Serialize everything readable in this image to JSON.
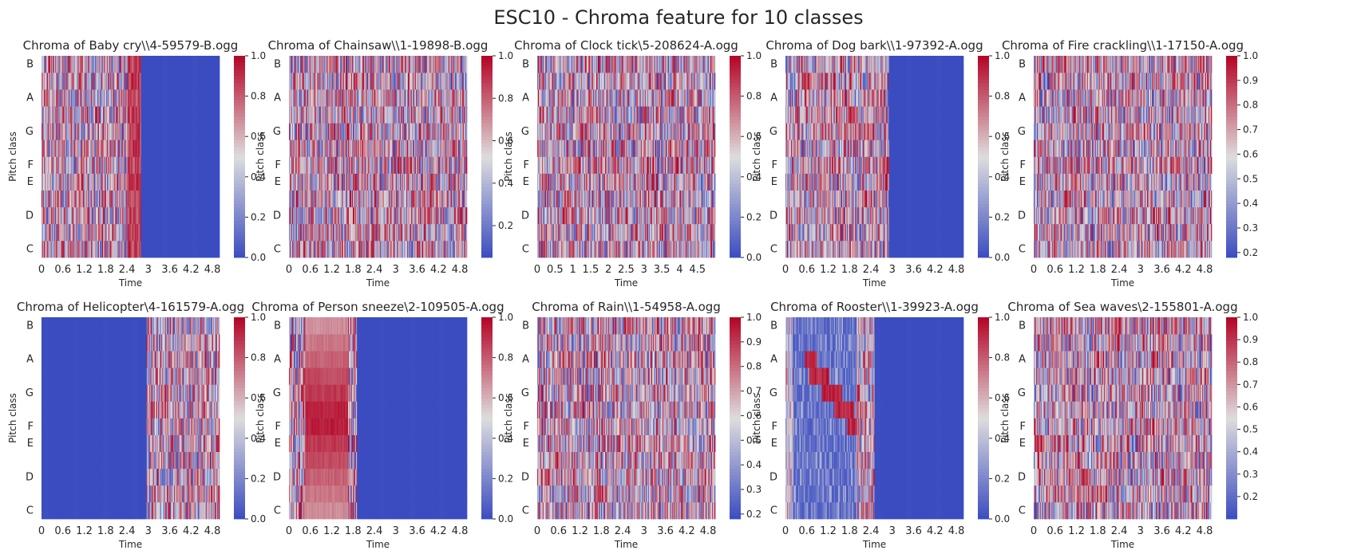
{
  "figure": {
    "suptitle": "ESC10 - Chroma feature for 10 classes"
  },
  "colormap": {
    "name": "coolwarm",
    "low": "#3b4cc0",
    "mid": "#dddddd",
    "high": "#b40426"
  },
  "chart_data": [
    {
      "type": "heatmap",
      "title": "Chroma of Baby cry\\\\4-59579-B.ogg",
      "xlabel": "Time",
      "ylabel": "Pitch class",
      "yticklabels": [
        "C",
        "D",
        "E",
        "F",
        "G",
        "A",
        "B"
      ],
      "xticklabels": [
        "0",
        "0.6",
        "1.2",
        "1.8",
        "2.4",
        "3",
        "3.6",
        "4.2",
        "4.8"
      ],
      "xticks": [
        0,
        0.6,
        1.2,
        1.8,
        2.4,
        3,
        3.6,
        4.2,
        4.8
      ],
      "xlim": [
        0,
        5.0
      ],
      "clim": [
        0.0,
        1.0
      ],
      "colorbar_ticks": [
        "0.0",
        "0.2",
        "0.4",
        "0.6",
        "0.8",
        "1.0"
      ],
      "colorbar_tick_values": [
        0.0,
        0.2,
        0.4,
        0.6,
        0.8,
        1.0
      ],
      "signal": [
        {
          "start": 0.0,
          "end": 2.4,
          "pattern": "noise"
        },
        {
          "start": 2.4,
          "end": 2.8,
          "pattern": "high"
        }
      ],
      "after_signal": 0.0
    },
    {
      "type": "heatmap",
      "title": "Chroma of Chainsaw\\\\1-19898-B.ogg",
      "xlabel": "Time",
      "ylabel": "Pitch class",
      "yticklabels": [
        "C",
        "D",
        "E",
        "F",
        "G",
        "A",
        "B"
      ],
      "xticklabels": [
        "0",
        "0.6",
        "1.2",
        "1.8",
        "2.4",
        "3",
        "3.6",
        "4.2",
        "4.8"
      ],
      "xticks": [
        0,
        0.6,
        1.2,
        1.8,
        2.4,
        3,
        3.6,
        4.2,
        4.8
      ],
      "xlim": [
        0,
        5.0
      ],
      "clim": [
        0.05,
        1.0
      ],
      "colorbar_ticks": [
        "0.2",
        "0.4",
        "0.6",
        "0.8",
        "1.0"
      ],
      "colorbar_tick_values": [
        0.2,
        0.4,
        0.6,
        0.8,
        1.0
      ],
      "signal": [
        {
          "start": 0.0,
          "end": 5.0,
          "pattern": "noise"
        }
      ],
      "after_signal": 0.0
    },
    {
      "type": "heatmap",
      "title": "Chroma of Clock tick\\5-208624-A.ogg",
      "xlabel": "Time",
      "ylabel": "Pitch class",
      "yticklabels": [
        "C",
        "D",
        "E",
        "F",
        "G",
        "A",
        "B"
      ],
      "xticklabels": [
        "0",
        "0.5",
        "1",
        "1.5",
        "2",
        "2.5",
        "3",
        "3.5",
        "4",
        "4.5"
      ],
      "xticks": [
        0,
        0.5,
        1,
        1.5,
        2,
        2.5,
        3,
        3.5,
        4,
        4.5
      ],
      "xlim": [
        0,
        5.0
      ],
      "clim": [
        0.0,
        1.0
      ],
      "colorbar_ticks": [
        "0.0",
        "0.2",
        "0.4",
        "0.6",
        "0.8",
        "1.0"
      ],
      "colorbar_tick_values": [
        0.0,
        0.2,
        0.4,
        0.6,
        0.8,
        1.0
      ],
      "signal": [
        {
          "start": 0.0,
          "end": 5.0,
          "pattern": "noise"
        }
      ],
      "after_signal": 0.0
    },
    {
      "type": "heatmap",
      "title": "Chroma of Dog bark\\\\1-97392-A.ogg",
      "xlabel": "Time",
      "ylabel": "Pitch class",
      "yticklabels": [
        "C",
        "D",
        "E",
        "F",
        "G",
        "A",
        "B"
      ],
      "xticklabels": [
        "0",
        "0.6",
        "1.2",
        "1.8",
        "2.4",
        "3",
        "3.6",
        "4.2",
        "4.8"
      ],
      "xticks": [
        0,
        0.6,
        1.2,
        1.8,
        2.4,
        3,
        3.6,
        4.2,
        4.8
      ],
      "xlim": [
        0,
        5.0
      ],
      "clim": [
        0.0,
        1.0
      ],
      "colorbar_ticks": [
        "0.0",
        "0.2",
        "0.4",
        "0.6",
        "0.8",
        "1.0"
      ],
      "colorbar_tick_values": [
        0.0,
        0.2,
        0.4,
        0.6,
        0.8,
        1.0
      ],
      "signal": [
        {
          "start": 0.0,
          "end": 2.9,
          "pattern": "noise"
        }
      ],
      "after_signal": 0.0
    },
    {
      "type": "heatmap",
      "title": "Chroma of Fire crackling\\\\1-17150-A.ogg",
      "xlabel": "Time",
      "ylabel": "Pitch class",
      "yticklabels": [
        "C",
        "D",
        "E",
        "F",
        "G",
        "A",
        "B"
      ],
      "xticklabels": [
        "0",
        "0.6",
        "1.2",
        "1.8",
        "2.4",
        "3",
        "3.6",
        "4.2",
        "4.8"
      ],
      "xticks": [
        0,
        0.6,
        1.2,
        1.8,
        2.4,
        3,
        3.6,
        4.2,
        4.8
      ],
      "xlim": [
        0,
        5.0
      ],
      "clim": [
        0.18,
        1.0
      ],
      "colorbar_ticks": [
        "0.2",
        "0.3",
        "0.4",
        "0.5",
        "0.6",
        "0.7",
        "0.8",
        "0.9",
        "1.0"
      ],
      "colorbar_tick_values": [
        0.2,
        0.3,
        0.4,
        0.5,
        0.6,
        0.7,
        0.8,
        0.9,
        1.0
      ],
      "signal": [
        {
          "start": 0.0,
          "end": 5.0,
          "pattern": "noise"
        }
      ],
      "after_signal": 0.0
    },
    {
      "type": "heatmap",
      "title": "Chroma of Helicopter\\4-161579-A.ogg",
      "xlabel": "Time",
      "ylabel": "Pitch class",
      "yticklabels": [
        "C",
        "D",
        "E",
        "F",
        "G",
        "A",
        "B"
      ],
      "xticklabels": [
        "0",
        "0.6",
        "1.2",
        "1.8",
        "2.4",
        "3",
        "3.6",
        "4.2",
        "4.8"
      ],
      "xticks": [
        0,
        0.6,
        1.2,
        1.8,
        2.4,
        3,
        3.6,
        4.2,
        4.8
      ],
      "xlim": [
        0,
        5.0
      ],
      "clim": [
        0.0,
        1.0
      ],
      "colorbar_ticks": [
        "0.0",
        "0.2",
        "0.4",
        "0.6",
        "0.8",
        "1.0"
      ],
      "colorbar_tick_values": [
        0.0,
        0.2,
        0.4,
        0.6,
        0.8,
        1.0
      ],
      "signal": [
        {
          "start": 2.95,
          "end": 5.0,
          "pattern": "noise"
        }
      ],
      "after_signal": 0.0
    },
    {
      "type": "heatmap",
      "title": "Chroma of Person sneeze\\2-109505-A.ogg",
      "xlabel": "Time",
      "ylabel": "Pitch class",
      "yticklabels": [
        "C",
        "D",
        "E",
        "F",
        "G",
        "A",
        "B"
      ],
      "xticklabels": [
        "0",
        "0.6",
        "1.2",
        "1.8",
        "2.4",
        "3",
        "3.6",
        "4.2",
        "4.8"
      ],
      "xticks": [
        0,
        0.6,
        1.2,
        1.8,
        2.4,
        3,
        3.6,
        4.2,
        4.8
      ],
      "xlim": [
        0,
        5.0
      ],
      "clim": [
        0.0,
        1.0
      ],
      "colorbar_ticks": [
        "0.0",
        "0.2",
        "0.4",
        "0.6",
        "0.8",
        "1.0"
      ],
      "colorbar_tick_values": [
        0.0,
        0.2,
        0.4,
        0.6,
        0.8,
        1.0
      ],
      "signal": [
        {
          "start": 0.0,
          "end": 0.45,
          "pattern": "noise"
        },
        {
          "start": 0.45,
          "end": 1.65,
          "pattern": "sneeze"
        },
        {
          "start": 1.65,
          "end": 1.9,
          "pattern": "noise"
        }
      ],
      "after_signal": 0.0
    },
    {
      "type": "heatmap",
      "title": "Chroma of Rain\\\\1-54958-A.ogg",
      "xlabel": "Time",
      "ylabel": "Pitch class",
      "yticklabels": [
        "C",
        "D",
        "E",
        "F",
        "G",
        "A",
        "B"
      ],
      "xticklabels": [
        "0",
        "0.6",
        "1.2",
        "1.8",
        "2.4",
        "3",
        "3.6",
        "4.2",
        "4.8"
      ],
      "xticks": [
        0,
        0.6,
        1.2,
        1.8,
        2.4,
        3,
        3.6,
        4.2,
        4.8
      ],
      "xlim": [
        0,
        5.0
      ],
      "clim": [
        0.18,
        1.0
      ],
      "colorbar_ticks": [
        "0.2",
        "0.3",
        "0.4",
        "0.5",
        "0.6",
        "0.7",
        "0.8",
        "0.9",
        "1.0"
      ],
      "colorbar_tick_values": [
        0.2,
        0.3,
        0.4,
        0.5,
        0.6,
        0.7,
        0.8,
        0.9,
        1.0
      ],
      "signal": [
        {
          "start": 0.0,
          "end": 5.0,
          "pattern": "noise"
        }
      ],
      "after_signal": 0.0
    },
    {
      "type": "heatmap",
      "title": "Chroma of Rooster\\\\1-39923-A.ogg",
      "xlabel": "Time",
      "ylabel": "Pitch class",
      "yticklabels": [
        "C",
        "D",
        "E",
        "F",
        "G",
        "A",
        "B"
      ],
      "xticklabels": [
        "0",
        "0.6",
        "1.2",
        "1.8",
        "2.4",
        "3",
        "3.6",
        "4.2",
        "4.8"
      ],
      "xticks": [
        0,
        0.6,
        1.2,
        1.8,
        2.4,
        3,
        3.6,
        4.2,
        4.8
      ],
      "xlim": [
        0,
        5.0
      ],
      "clim": [
        0.0,
        1.0
      ],
      "colorbar_ticks": [
        "0.0",
        "0.2",
        "0.4",
        "0.6",
        "0.8",
        "1.0"
      ],
      "colorbar_tick_values": [
        0.0,
        0.2,
        0.4,
        0.6,
        0.8,
        1.0
      ],
      "signal": [
        {
          "start": 0.0,
          "end": 2.5,
          "pattern": "rooster"
        }
      ],
      "after_signal": 0.0
    },
    {
      "type": "heatmap",
      "title": "Chroma of Sea waves\\2-155801-A.ogg",
      "xlabel": "Time",
      "ylabel": "Pitch class",
      "yticklabels": [
        "C",
        "D",
        "E",
        "F",
        "G",
        "A",
        "B"
      ],
      "xticklabels": [
        "0",
        "0.6",
        "1.2",
        "1.8",
        "2.4",
        "3",
        "3.6",
        "4.2",
        "4.8"
      ],
      "xticks": [
        0,
        0.6,
        1.2,
        1.8,
        2.4,
        3,
        3.6,
        4.2,
        4.8
      ],
      "xlim": [
        0,
        5.0
      ],
      "clim": [
        0.1,
        1.0
      ],
      "colorbar_ticks": [
        "0.2",
        "0.3",
        "0.4",
        "0.5",
        "0.6",
        "0.7",
        "0.8",
        "0.9",
        "1.0"
      ],
      "colorbar_tick_values": [
        0.2,
        0.3,
        0.4,
        0.5,
        0.6,
        0.7,
        0.8,
        0.9,
        1.0
      ],
      "signal": [
        {
          "start": 0.0,
          "end": 5.0,
          "pattern": "noise"
        }
      ],
      "after_signal": 0.0
    }
  ]
}
